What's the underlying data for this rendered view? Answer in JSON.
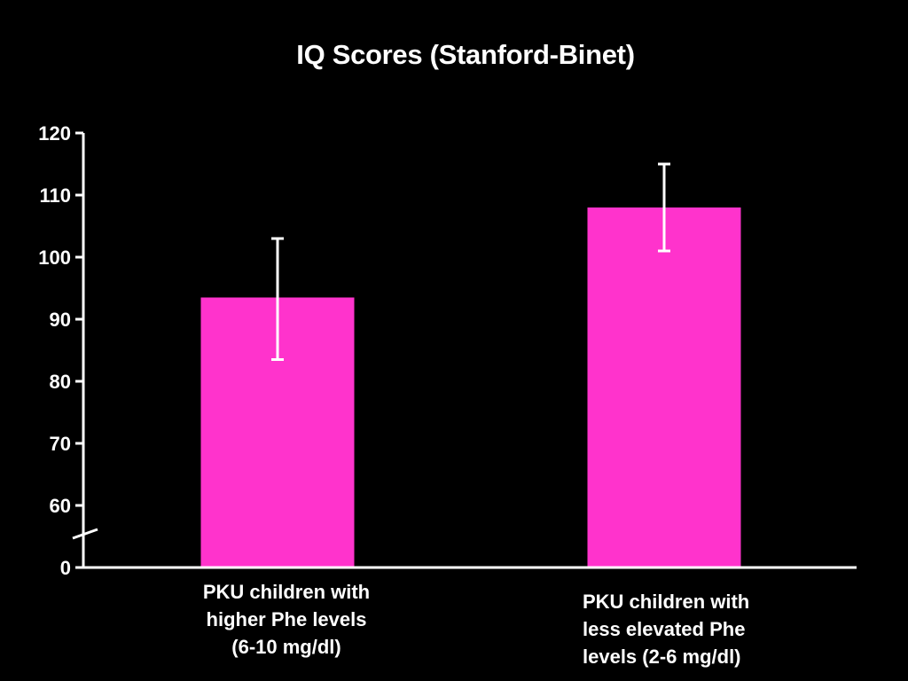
{
  "chart_data": {
    "type": "bar",
    "title": "IQ Scores (Stanford-Binet)",
    "xlabel": "",
    "ylabel": "",
    "categories": [
      [
        "PKU children with",
        "higher Phe levels",
        "(6-10 mg/dl)"
      ],
      [
        "PKU children with",
        "less elevated Phe",
        "levels (2-6 mg/dl)"
      ]
    ],
    "values": [
      93.5,
      108
    ],
    "error_bars": [
      {
        "low": 83.5,
        "high": 103
      },
      {
        "low": 101,
        "high": 115
      }
    ],
    "y_ticks": [
      "120",
      "110",
      "100",
      "90",
      "80",
      "70",
      "60",
      "0"
    ],
    "ylim": [
      55,
      120
    ],
    "axis_break": true,
    "grid": false,
    "legend": "none"
  },
  "colors": {
    "background": "#000000",
    "bar": "#ff33cc",
    "axis": "#ffffff",
    "text": "#ffffff",
    "error_bar": "#ffffff"
  }
}
